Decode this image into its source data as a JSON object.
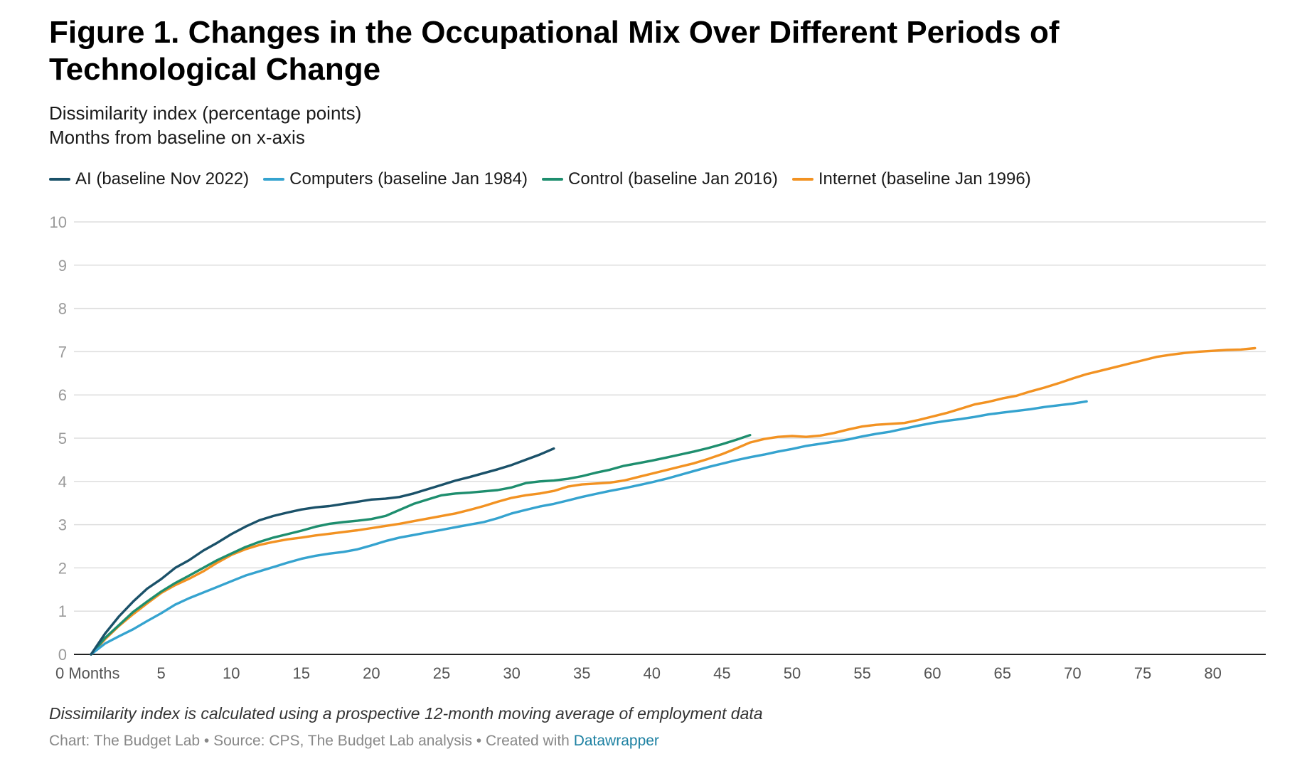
{
  "title": "Figure 1. Changes in the Occupational Mix Over Different Periods of Technological Change",
  "subtitle_line1": "Dissimilarity index (percentage points)",
  "subtitle_line2": "Months from baseline on x-axis",
  "note": "Dissimilarity index is calculated using a prospective 12-month moving average of employment data",
  "footer": {
    "text": "Chart: The Budget Lab • Source: CPS, The Budget Lab analysis • Created with",
    "link": "Datawrapper"
  },
  "chart_data": {
    "type": "line",
    "xlabel": "",
    "ylabel": "",
    "xlim": [
      0,
      85
    ],
    "ylim": [
      0,
      10
    ],
    "x_ticks": [
      0,
      5,
      10,
      15,
      20,
      25,
      30,
      35,
      40,
      45,
      50,
      55,
      60,
      65,
      70,
      75,
      80
    ],
    "x_tick_labels": [
      "0 Months",
      "5",
      "10",
      "15",
      "20",
      "25",
      "30",
      "35",
      "40",
      "45",
      "50",
      "55",
      "60",
      "65",
      "70",
      "75",
      "80"
    ],
    "y_ticks": [
      0,
      1,
      2,
      3,
      4,
      5,
      6,
      7,
      8,
      9,
      10
    ],
    "y_tick_labels": [
      "0",
      "1",
      "2",
      "3",
      "4",
      "5",
      "6",
      "7",
      "8",
      "9",
      "10"
    ],
    "grid": true,
    "legend_position": "top-left",
    "series": [
      {
        "name": "AI (baseline Nov 2022)",
        "color": "#1a5169",
        "x": [
          0,
          1,
          2,
          3,
          4,
          5,
          6,
          7,
          8,
          9,
          10,
          11,
          12,
          13,
          14,
          15,
          16,
          17,
          18,
          19,
          20,
          21,
          22,
          23,
          24,
          25,
          26,
          27,
          28,
          29,
          30,
          31,
          32,
          33
        ],
        "y": [
          0,
          0.48,
          0.88,
          1.22,
          1.52,
          1.74,
          2.0,
          2.18,
          2.4,
          2.58,
          2.78,
          2.95,
          3.1,
          3.2,
          3.28,
          3.35,
          3.4,
          3.43,
          3.48,
          3.53,
          3.58,
          3.6,
          3.64,
          3.72,
          3.82,
          3.92,
          4.02,
          4.1,
          4.19,
          4.28,
          4.38,
          4.5,
          4.62,
          4.76
        ]
      },
      {
        "name": "Computers (baseline Jan 1984)",
        "color": "#35a3cf",
        "x": [
          0,
          1,
          2,
          3,
          4,
          5,
          6,
          7,
          8,
          9,
          10,
          11,
          12,
          13,
          14,
          15,
          16,
          17,
          18,
          19,
          20,
          21,
          22,
          23,
          24,
          25,
          26,
          27,
          28,
          29,
          30,
          31,
          32,
          33,
          34,
          35,
          36,
          37,
          38,
          39,
          40,
          41,
          42,
          43,
          44,
          45,
          46,
          47,
          48,
          49,
          50,
          51,
          52,
          53,
          54,
          55,
          56,
          57,
          58,
          59,
          60,
          61,
          62,
          63,
          64,
          65,
          66,
          67,
          68,
          69,
          70,
          71
        ],
        "y": [
          0,
          0.25,
          0.42,
          0.58,
          0.77,
          0.95,
          1.15,
          1.3,
          1.43,
          1.56,
          1.69,
          1.82,
          1.92,
          2.02,
          2.12,
          2.21,
          2.28,
          2.33,
          2.37,
          2.43,
          2.52,
          2.62,
          2.7,
          2.76,
          2.82,
          2.88,
          2.94,
          3.0,
          3.06,
          3.15,
          3.26,
          3.34,
          3.42,
          3.48,
          3.56,
          3.64,
          3.71,
          3.78,
          3.84,
          3.91,
          3.98,
          4.06,
          4.15,
          4.24,
          4.33,
          4.41,
          4.49,
          4.56,
          4.62,
          4.69,
          4.75,
          4.82,
          4.87,
          4.92,
          4.97,
          5.04,
          5.1,
          5.15,
          5.22,
          5.29,
          5.35,
          5.4,
          5.44,
          5.49,
          5.55,
          5.59,
          5.63,
          5.67,
          5.72,
          5.76,
          5.8,
          5.85
        ]
      },
      {
        "name": "Control (baseline Jan 2016)",
        "color": "#1e8e6e",
        "x": [
          0,
          1,
          2,
          3,
          4,
          5,
          6,
          7,
          8,
          9,
          10,
          11,
          12,
          13,
          14,
          15,
          16,
          17,
          18,
          19,
          20,
          21,
          22,
          23,
          24,
          25,
          26,
          27,
          28,
          29,
          30,
          31,
          32,
          33,
          34,
          35,
          36,
          37,
          38,
          39,
          40,
          41,
          42,
          43,
          44,
          45,
          46,
          47
        ],
        "y": [
          0,
          0.38,
          0.68,
          0.98,
          1.22,
          1.45,
          1.65,
          1.82,
          2.0,
          2.18,
          2.33,
          2.48,
          2.6,
          2.7,
          2.78,
          2.86,
          2.95,
          3.02,
          3.06,
          3.09,
          3.13,
          3.2,
          3.34,
          3.48,
          3.58,
          3.68,
          3.72,
          3.74,
          3.77,
          3.8,
          3.86,
          3.96,
          4.0,
          4.02,
          4.06,
          4.12,
          4.2,
          4.27,
          4.36,
          4.42,
          4.48,
          4.55,
          4.62,
          4.69,
          4.77,
          4.86,
          4.96,
          5.07
        ]
      },
      {
        "name": "Internet (baseline Jan 1996)",
        "color": "#f29222",
        "x": [
          0,
          1,
          2,
          3,
          4,
          5,
          6,
          7,
          8,
          9,
          10,
          11,
          12,
          13,
          14,
          15,
          16,
          17,
          18,
          19,
          20,
          21,
          22,
          23,
          24,
          25,
          26,
          27,
          28,
          29,
          30,
          31,
          32,
          33,
          34,
          35,
          36,
          37,
          38,
          39,
          40,
          41,
          42,
          43,
          44,
          45,
          46,
          47,
          48,
          49,
          50,
          51,
          52,
          53,
          54,
          55,
          56,
          57,
          58,
          59,
          60,
          61,
          62,
          63,
          64,
          65,
          66,
          67,
          68,
          69,
          70,
          71,
          72,
          73,
          74,
          75,
          76,
          77,
          78,
          79,
          80,
          81,
          82,
          83
        ],
        "y": [
          0,
          0.35,
          0.66,
          0.93,
          1.18,
          1.42,
          1.6,
          1.75,
          1.92,
          2.12,
          2.3,
          2.43,
          2.53,
          2.6,
          2.66,
          2.7,
          2.75,
          2.79,
          2.83,
          2.87,
          2.92,
          2.97,
          3.02,
          3.08,
          3.14,
          3.2,
          3.26,
          3.34,
          3.43,
          3.53,
          3.62,
          3.68,
          3.72,
          3.78,
          3.88,
          3.93,
          3.95,
          3.97,
          4.02,
          4.1,
          4.18,
          4.26,
          4.34,
          4.42,
          4.52,
          4.63,
          4.76,
          4.9,
          4.98,
          5.03,
          5.05,
          5.03,
          5.06,
          5.12,
          5.2,
          5.27,
          5.31,
          5.33,
          5.35,
          5.42,
          5.5,
          5.58,
          5.68,
          5.78,
          5.84,
          5.92,
          5.98,
          6.08,
          6.17,
          6.27,
          6.38,
          6.48,
          6.56,
          6.64,
          6.72,
          6.8,
          6.88,
          6.93,
          6.97,
          7.0,
          7.02,
          7.04,
          7.05,
          7.08
        ]
      }
    ]
  }
}
